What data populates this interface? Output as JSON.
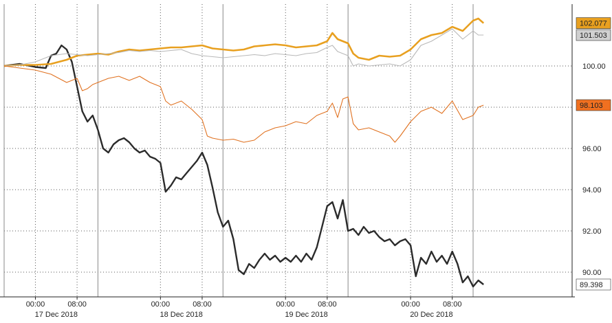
{
  "chart_data": {
    "type": "line",
    "title": "",
    "xlabel": "",
    "ylabel": "",
    "x_unit": "hours since 17 Dec 2018 00:00 (plot starts ~16 Dec 18:00)",
    "xlim": [
      -6,
      103
    ],
    "ylim": [
      88.8,
      103.0
    ],
    "y_ticks": [
      "90.00",
      "92.00",
      "94.00",
      "96.00",
      "98.00",
      "100.00"
    ],
    "x_ticks": [
      {
        "t": 0,
        "label": "00:00"
      },
      {
        "t": 8,
        "label": "08:00"
      },
      {
        "t": 24,
        "label": "00:00"
      },
      {
        "t": 32,
        "label": "08:00"
      },
      {
        "t": 48,
        "label": "00:00"
      },
      {
        "t": 56,
        "label": "08:00"
      },
      {
        "t": 72,
        "label": "00:00"
      },
      {
        "t": 80,
        "label": "08:00"
      }
    ],
    "date_labels": [
      {
        "t": 4,
        "label": "17 Dec 2018"
      },
      {
        "t": 28,
        "label": "18 Dec 2018"
      },
      {
        "t": 52,
        "label": "19 Dec 2018"
      },
      {
        "t": 76,
        "label": "20 Dec 2018"
      }
    ],
    "grid": true,
    "legend": "none",
    "series": [
      {
        "color": "#2b2b2b",
        "last_label": "89.398",
        "label_bg": "#ffffff",
        "label_fg": "#000000",
        "points": [
          [
            -6,
            100.0
          ],
          [
            -3,
            100.1
          ],
          [
            0,
            99.95
          ],
          [
            2,
            99.9
          ],
          [
            3,
            100.5
          ],
          [
            4,
            100.6
          ],
          [
            5,
            101.0
          ],
          [
            6,
            100.8
          ],
          [
            7,
            100.2
          ],
          [
            8,
            99.0
          ],
          [
            9,
            97.8
          ],
          [
            10,
            97.3
          ],
          [
            11,
            97.6
          ],
          [
            12,
            96.9
          ],
          [
            13,
            96.0
          ],
          [
            14,
            95.8
          ],
          [
            15,
            96.2
          ],
          [
            16,
            96.4
          ],
          [
            17,
            96.5
          ],
          [
            18,
            96.3
          ],
          [
            19,
            96.0
          ],
          [
            20,
            95.8
          ],
          [
            21,
            95.9
          ],
          [
            22,
            95.6
          ],
          [
            23,
            95.5
          ],
          [
            24,
            95.3
          ],
          [
            25,
            93.9
          ],
          [
            26,
            94.2
          ],
          [
            27,
            94.6
          ],
          [
            28,
            94.5
          ],
          [
            29,
            94.8
          ],
          [
            30,
            95.1
          ],
          [
            31,
            95.4
          ],
          [
            32,
            95.8
          ],
          [
            33,
            95.2
          ],
          [
            34,
            94.1
          ],
          [
            35,
            92.9
          ],
          [
            36,
            92.2
          ],
          [
            37,
            92.5
          ],
          [
            38,
            91.6
          ],
          [
            39,
            90.1
          ],
          [
            40,
            89.9
          ],
          [
            41,
            90.4
          ],
          [
            42,
            90.2
          ],
          [
            43,
            90.6
          ],
          [
            44,
            90.9
          ],
          [
            45,
            90.6
          ],
          [
            46,
            90.8
          ],
          [
            47,
            90.5
          ],
          [
            48,
            90.7
          ],
          [
            49,
            90.5
          ],
          [
            50,
            90.8
          ],
          [
            51,
            90.5
          ],
          [
            52,
            90.9
          ],
          [
            53,
            90.6
          ],
          [
            54,
            91.2
          ],
          [
            55,
            92.2
          ],
          [
            56,
            93.2
          ],
          [
            57,
            93.4
          ],
          [
            58,
            92.6
          ],
          [
            59,
            93.5
          ],
          [
            60,
            92.0
          ],
          [
            61,
            92.1
          ],
          [
            62,
            91.8
          ],
          [
            63,
            92.2
          ],
          [
            64,
            91.9
          ],
          [
            65,
            92.0
          ],
          [
            66,
            91.7
          ],
          [
            67,
            91.5
          ],
          [
            68,
            91.6
          ],
          [
            69,
            91.3
          ],
          [
            70,
            91.5
          ],
          [
            71,
            91.6
          ],
          [
            72,
            91.3
          ],
          [
            73,
            89.8
          ],
          [
            74,
            90.7
          ],
          [
            75,
            90.4
          ],
          [
            76,
            91.0
          ],
          [
            77,
            90.5
          ],
          [
            78,
            90.8
          ],
          [
            79,
            90.4
          ],
          [
            80,
            91.0
          ],
          [
            81,
            90.4
          ],
          [
            82,
            89.5
          ],
          [
            83,
            89.8
          ],
          [
            84,
            89.3
          ],
          [
            85,
            89.6
          ],
          [
            86,
            89.4
          ]
        ]
      },
      {
        "color": "#e8a020",
        "last_label": "102.077",
        "label_bg": "#e8a020",
        "label_fg": "#000000",
        "points": [
          [
            -6,
            100.0
          ],
          [
            -3,
            100.05
          ],
          [
            0,
            100.05
          ],
          [
            3,
            100.1
          ],
          [
            6,
            100.3
          ],
          [
            8,
            100.5
          ],
          [
            10,
            100.55
          ],
          [
            12,
            100.6
          ],
          [
            14,
            100.55
          ],
          [
            16,
            100.7
          ],
          [
            18,
            100.8
          ],
          [
            20,
            100.75
          ],
          [
            22,
            100.8
          ],
          [
            24,
            100.85
          ],
          [
            26,
            100.9
          ],
          [
            28,
            100.9
          ],
          [
            30,
            100.95
          ],
          [
            32,
            101.0
          ],
          [
            34,
            100.85
          ],
          [
            36,
            100.8
          ],
          [
            38,
            100.75
          ],
          [
            40,
            100.8
          ],
          [
            42,
            100.95
          ],
          [
            44,
            101.0
          ],
          [
            46,
            101.05
          ],
          [
            48,
            101.0
          ],
          [
            50,
            100.9
          ],
          [
            52,
            100.95
          ],
          [
            54,
            101.0
          ],
          [
            56,
            101.2
          ],
          [
            57,
            101.6
          ],
          [
            58,
            101.3
          ],
          [
            59,
            101.2
          ],
          [
            60,
            101.1
          ],
          [
            61,
            100.6
          ],
          [
            62,
            100.4
          ],
          [
            64,
            100.3
          ],
          [
            66,
            100.5
          ],
          [
            68,
            100.45
          ],
          [
            70,
            100.5
          ],
          [
            72,
            100.8
          ],
          [
            74,
            101.3
          ],
          [
            76,
            101.5
          ],
          [
            78,
            101.6
          ],
          [
            80,
            101.9
          ],
          [
            82,
            101.7
          ],
          [
            84,
            102.2
          ],
          [
            85,
            102.3
          ],
          [
            86,
            102.08
          ]
        ]
      },
      {
        "color": "#b8b8b8",
        "last_label": "101.503",
        "label_bg": "#d0d0d0",
        "label_fg": "#000000",
        "points": [
          [
            -6,
            100.0
          ],
          [
            -3,
            100.05
          ],
          [
            0,
            100.2
          ],
          [
            3,
            100.5
          ],
          [
            6,
            100.6
          ],
          [
            8,
            100.55
          ],
          [
            10,
            100.5
          ],
          [
            12,
            100.55
          ],
          [
            14,
            100.6
          ],
          [
            16,
            100.65
          ],
          [
            18,
            100.75
          ],
          [
            20,
            100.7
          ],
          [
            22,
            100.75
          ],
          [
            24,
            100.7
          ],
          [
            26,
            100.75
          ],
          [
            28,
            100.8
          ],
          [
            30,
            100.6
          ],
          [
            32,
            100.5
          ],
          [
            34,
            100.45
          ],
          [
            36,
            100.4
          ],
          [
            38,
            100.45
          ],
          [
            40,
            100.5
          ],
          [
            42,
            100.55
          ],
          [
            44,
            100.5
          ],
          [
            46,
            100.6
          ],
          [
            48,
            100.55
          ],
          [
            50,
            100.5
          ],
          [
            52,
            100.6
          ],
          [
            54,
            100.65
          ],
          [
            56,
            100.9
          ],
          [
            57,
            101.0
          ],
          [
            58,
            100.7
          ],
          [
            59,
            100.6
          ],
          [
            60,
            100.5
          ],
          [
            61,
            100.0
          ],
          [
            62,
            100.1
          ],
          [
            64,
            100.0
          ],
          [
            66,
            100.05
          ],
          [
            68,
            100.1
          ],
          [
            70,
            100.0
          ],
          [
            72,
            100.3
          ],
          [
            74,
            101.0
          ],
          [
            76,
            101.2
          ],
          [
            78,
            101.5
          ],
          [
            80,
            101.8
          ],
          [
            82,
            101.3
          ],
          [
            84,
            101.7
          ],
          [
            85,
            101.5
          ],
          [
            86,
            101.5
          ]
        ]
      },
      {
        "color": "#e0701e",
        "last_label": "98.103",
        "label_bg": "#f07020",
        "label_fg": "#000000",
        "points": [
          [
            -6,
            100.0
          ],
          [
            -3,
            99.9
          ],
          [
            0,
            99.8
          ],
          [
            3,
            99.6
          ],
          [
            6,
            99.2
          ],
          [
            8,
            99.4
          ],
          [
            9,
            98.8
          ],
          [
            10,
            98.9
          ],
          [
            11,
            99.1
          ],
          [
            12,
            99.2
          ],
          [
            14,
            99.4
          ],
          [
            16,
            99.5
          ],
          [
            18,
            99.3
          ],
          [
            20,
            99.5
          ],
          [
            22,
            99.2
          ],
          [
            24,
            99.0
          ],
          [
            25,
            98.3
          ],
          [
            26,
            98.1
          ],
          [
            28,
            98.3
          ],
          [
            30,
            97.9
          ],
          [
            32,
            97.4
          ],
          [
            33,
            96.6
          ],
          [
            34,
            96.5
          ],
          [
            36,
            96.4
          ],
          [
            38,
            96.45
          ],
          [
            40,
            96.3
          ],
          [
            42,
            96.4
          ],
          [
            44,
            96.8
          ],
          [
            46,
            97.0
          ],
          [
            48,
            97.1
          ],
          [
            50,
            97.3
          ],
          [
            52,
            97.2
          ],
          [
            54,
            97.6
          ],
          [
            56,
            97.8
          ],
          [
            57,
            98.2
          ],
          [
            58,
            97.5
          ],
          [
            59,
            98.4
          ],
          [
            60,
            98.5
          ],
          [
            61,
            97.2
          ],
          [
            62,
            96.9
          ],
          [
            64,
            97.0
          ],
          [
            66,
            96.8
          ],
          [
            68,
            96.6
          ],
          [
            69,
            96.3
          ],
          [
            70,
            96.6
          ],
          [
            72,
            97.3
          ],
          [
            74,
            97.8
          ],
          [
            76,
            98.0
          ],
          [
            78,
            97.7
          ],
          [
            80,
            98.3
          ],
          [
            82,
            97.4
          ],
          [
            84,
            97.6
          ],
          [
            85,
            98.0
          ],
          [
            86,
            98.1
          ]
        ]
      }
    ]
  }
}
